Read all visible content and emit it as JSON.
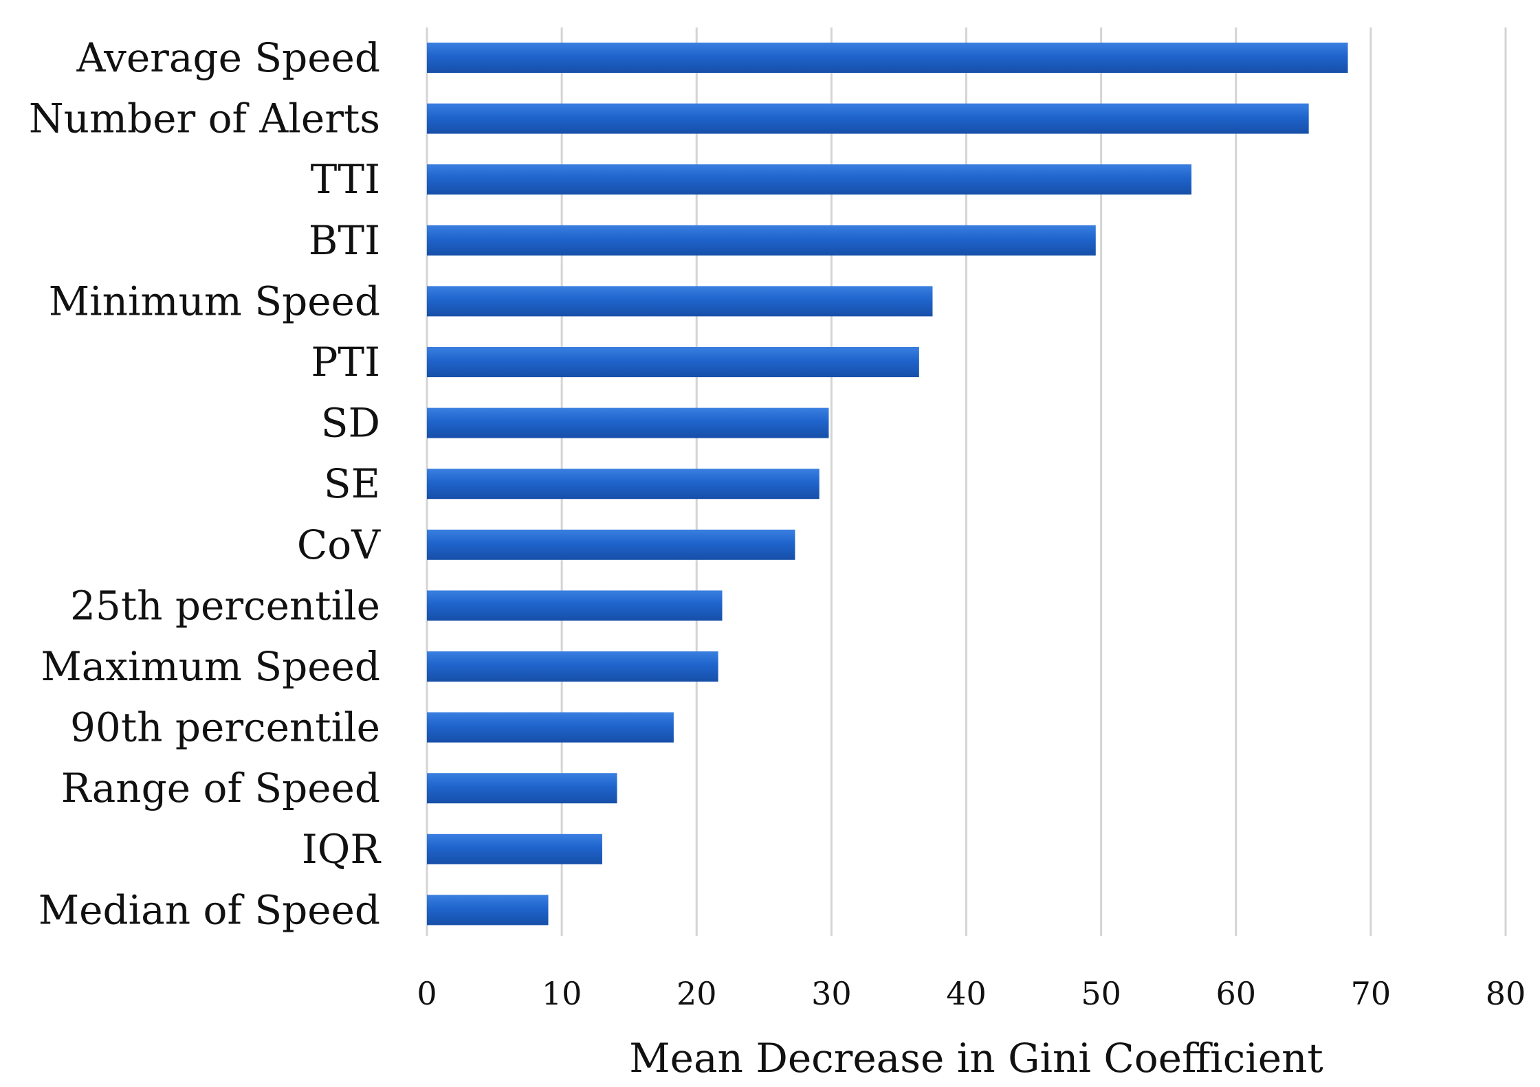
{
  "chart_data": {
    "type": "bar",
    "orientation": "horizontal",
    "title": "",
    "xlabel": "Mean Decrease in Gini Coefficient",
    "ylabel": "",
    "xlim": [
      0,
      80
    ],
    "xticks": [
      0,
      10,
      20,
      30,
      40,
      50,
      60,
      70,
      80
    ],
    "grid": true,
    "legend": "none",
    "bar_color": "#1f64cc",
    "categories": [
      "Average Speed",
      "Number of Alerts",
      "TTI",
      "BTI",
      "Minimum Speed",
      "PTI",
      "SD",
      "SE",
      "CoV",
      "25th percentile",
      "Maximum Speed",
      "90th percentile",
      "Range of Speed",
      "IQR",
      "Median of Speed"
    ],
    "values": [
      68.3,
      65.4,
      56.7,
      49.6,
      37.5,
      36.5,
      29.8,
      29.1,
      27.3,
      21.9,
      21.6,
      18.3,
      14.1,
      13.0,
      9.0
    ]
  }
}
